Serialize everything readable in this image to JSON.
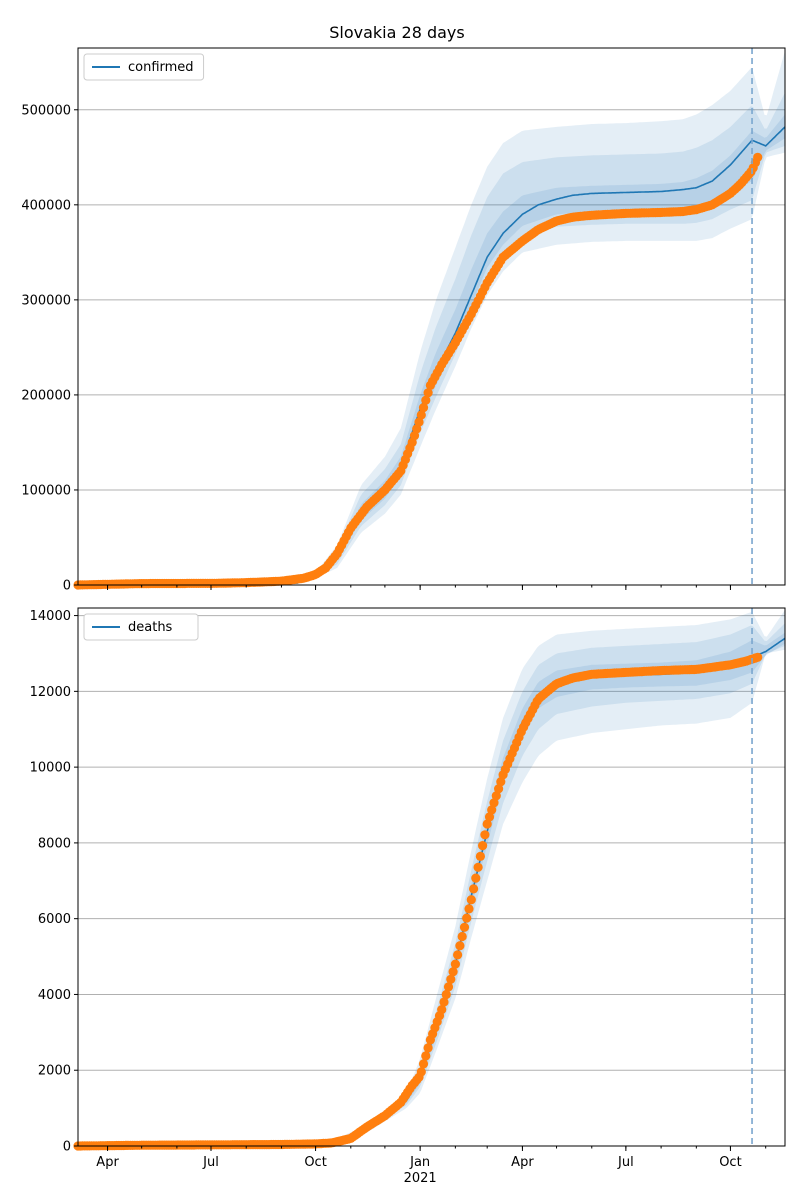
{
  "figure": {
    "title": "Slovakia 28 days"
  },
  "colors": {
    "model": "#1f77b4",
    "observed": "#ff7f0e",
    "band": "#1f77b4",
    "grid": "#b0b0b0",
    "forecast_line": "#7aa6cf"
  },
  "x_ticks": [
    {
      "date": "2020-04-01",
      "label": "Apr"
    },
    {
      "date": "2020-07-01",
      "label": "Jul"
    },
    {
      "date": "2020-10-01",
      "label": "Oct"
    },
    {
      "date": "2021-01-01",
      "label": "Jan",
      "sublabel": "2021"
    },
    {
      "date": "2021-04-01",
      "label": "Apr"
    },
    {
      "date": "2021-07-01",
      "label": "Jul"
    },
    {
      "date": "2021-10-01",
      "label": "Oct"
    }
  ],
  "chart_data": [
    {
      "type": "line",
      "legend": "confirmed",
      "legend_position": "top-left",
      "grid": "horizontal",
      "xlim": [
        "2020-03-06",
        "2021-11-18"
      ],
      "ylim": [
        0,
        565000
      ],
      "y_ticks": [
        0,
        100000,
        200000,
        300000,
        400000,
        500000
      ],
      "forecast_start": "2021-10-20",
      "model": {
        "x": [
          "2020-03-06",
          "2020-09-15",
          "2020-10-01",
          "2020-10-20",
          "2020-11-10",
          "2020-12-01",
          "2020-12-15",
          "2021-01-01",
          "2021-01-15",
          "2021-02-01",
          "2021-02-15",
          "2021-03-01",
          "2021-03-15",
          "2021-04-01",
          "2021-04-15",
          "2021-05-01",
          "2021-05-15",
          "2021-06-01",
          "2021-07-01",
          "2021-08-01",
          "2021-08-20",
          "2021-09-01",
          "2021-09-15",
          "2021-10-01",
          "2021-10-20",
          "2021-11-01",
          "2021-11-18"
        ],
        "y": [
          0,
          2000,
          10000,
          30000,
          75000,
          100000,
          125000,
          185000,
          225000,
          265000,
          305000,
          345000,
          370000,
          390000,
          400000,
          406000,
          410000,
          412000,
          413000,
          414000,
          416000,
          418000,
          425000,
          442000,
          468000,
          462000,
          482000
        ]
      },
      "bands": [
        {
          "x": [
            "2020-03-06",
            "2020-09-15",
            "2020-10-01",
            "2020-10-20",
            "2020-11-10",
            "2020-12-01",
            "2020-12-15",
            "2021-01-01",
            "2021-01-15",
            "2021-02-01",
            "2021-02-15",
            "2021-03-01",
            "2021-03-15",
            "2021-04-01",
            "2021-05-01",
            "2021-06-01",
            "2021-07-01",
            "2021-08-01",
            "2021-08-20",
            "2021-09-01",
            "2021-09-15",
            "2021-10-01",
            "2021-10-20",
            "2021-11-01",
            "2021-11-18"
          ],
          "upper": [
            0,
            2500,
            13000,
            42000,
            105000,
            135000,
            165000,
            245000,
            300000,
            355000,
            400000,
            440000,
            465000,
            478000,
            482000,
            485000,
            486000,
            488000,
            490000,
            495000,
            505000,
            520000,
            545000,
            490000,
            562000
          ],
          "lower": [
            0,
            1500,
            7000,
            18000,
            55000,
            75000,
            95000,
            145000,
            185000,
            230000,
            270000,
            305000,
            330000,
            350000,
            358000,
            361000,
            362000,
            362000,
            362000,
            362000,
            365000,
            375000,
            385000,
            450000,
            455000
          ]
        },
        {
          "x": [
            "2020-03-06",
            "2020-09-15",
            "2020-10-01",
            "2020-10-20",
            "2020-11-10",
            "2020-12-01",
            "2020-12-15",
            "2021-01-01",
            "2021-01-15",
            "2021-02-01",
            "2021-02-15",
            "2021-03-01",
            "2021-03-15",
            "2021-04-01",
            "2021-05-01",
            "2021-06-01",
            "2021-07-01",
            "2021-08-01",
            "2021-08-20",
            "2021-09-01",
            "2021-09-15",
            "2021-10-01",
            "2021-10-20",
            "2021-11-01",
            "2021-11-18"
          ],
          "upper": [
            0,
            2300,
            12000,
            38000,
            95000,
            122000,
            148000,
            222000,
            272000,
            322000,
            368000,
            408000,
            433000,
            445000,
            450000,
            452000,
            453000,
            454000,
            456000,
            460000,
            468000,
            482000,
            505000,
            478000,
            518000
          ],
          "lower": [
            0,
            1700,
            8000,
            22000,
            62000,
            84000,
            105000,
            160000,
            198000,
            243000,
            285000,
            322000,
            348000,
            368000,
            377000,
            379000,
            380000,
            380000,
            380000,
            381000,
            385000,
            395000,
            405000,
            455000,
            462000
          ]
        },
        {
          "x": [
            "2020-03-06",
            "2020-09-15",
            "2020-10-01",
            "2020-10-20",
            "2020-11-10",
            "2020-12-01",
            "2020-12-15",
            "2021-01-01",
            "2021-01-15",
            "2021-02-01",
            "2021-02-15",
            "2021-03-01",
            "2021-03-15",
            "2021-04-01",
            "2021-05-01",
            "2021-06-01",
            "2021-07-01",
            "2021-08-01",
            "2021-08-20",
            "2021-09-01",
            "2021-09-15",
            "2021-10-01",
            "2021-10-20",
            "2021-11-01",
            "2021-11-18"
          ],
          "upper": [
            0,
            2100,
            11000,
            34000,
            85000,
            110000,
            135000,
            200000,
            245000,
            290000,
            332000,
            370000,
            393000,
            410000,
            418000,
            420000,
            421000,
            422000,
            424000,
            428000,
            436000,
            452000,
            478000,
            470000,
            495000
          ],
          "lower": [
            0,
            1900,
            9000,
            26000,
            68000,
            91000,
            115000,
            172000,
            210000,
            252000,
            294000,
            334000,
            358000,
            378000,
            390000,
            393000,
            395000,
            395000,
            395000,
            396000,
            400000,
            412000,
            425000,
            457000,
            470000
          ]
        }
      ],
      "observed": {
        "x": [
          "2020-03-06",
          "2020-05-01",
          "2020-07-01",
          "2020-08-01",
          "2020-09-01",
          "2020-09-20",
          "2020-10-01",
          "2020-10-10",
          "2020-10-20",
          "2020-11-01",
          "2020-11-15",
          "2020-12-01",
          "2020-12-15",
          "2020-12-25",
          "2021-01-01",
          "2021-01-10",
          "2021-01-20",
          "2021-02-01",
          "2021-02-15",
          "2021-03-01",
          "2021-03-15",
          "2021-04-01",
          "2021-04-15",
          "2021-05-01",
          "2021-05-15",
          "2021-06-01",
          "2021-07-01",
          "2021-08-01",
          "2021-08-20",
          "2021-09-01",
          "2021-09-15",
          "2021-10-01",
          "2021-10-10",
          "2021-10-20",
          "2021-10-25"
        ],
        "y": [
          0,
          1500,
          1700,
          2500,
          4000,
          7000,
          11000,
          18000,
          33000,
          60000,
          82000,
          100000,
          120000,
          150000,
          175000,
          210000,
          232000,
          255000,
          285000,
          318000,
          345000,
          362000,
          374000,
          383000,
          387000,
          389000,
          391000,
          392000,
          393000,
          395000,
          400000,
          412000,
          422000,
          436000,
          450000
        ]
      }
    },
    {
      "type": "line",
      "legend": "deaths",
      "legend_position": "top-left",
      "grid": "horizontal",
      "xlim": [
        "2020-03-06",
        "2021-11-18"
      ],
      "ylim": [
        0,
        14200
      ],
      "y_ticks": [
        0,
        2000,
        4000,
        6000,
        8000,
        10000,
        12000,
        14000
      ],
      "forecast_start": "2021-10-20",
      "model": {
        "x": [
          "2020-03-06",
          "2020-10-01",
          "2020-10-20",
          "2020-11-15",
          "2020-12-01",
          "2020-12-20",
          "2021-01-01",
          "2021-01-15",
          "2021-02-01",
          "2021-02-15",
          "2021-03-01",
          "2021-03-15",
          "2021-04-01",
          "2021-04-15",
          "2021-05-01",
          "2021-05-15",
          "2021-06-01",
          "2021-07-01",
          "2021-08-01",
          "2021-09-01",
          "2021-10-01",
          "2021-10-20",
          "2021-11-01",
          "2021-11-18"
        ],
        "y": [
          0,
          50,
          150,
          450,
          800,
          1200,
          1800,
          3100,
          4800,
          6600,
          8300,
          9900,
          11200,
          11900,
          12200,
          12350,
          12400,
          12430,
          12450,
          12500,
          12700,
          12900,
          13050,
          13400
        ]
      },
      "bands": [
        {
          "x": [
            "2020-03-06",
            "2020-10-01",
            "2020-10-20",
            "2020-11-15",
            "2020-12-01",
            "2020-12-20",
            "2021-01-01",
            "2021-01-15",
            "2021-02-01",
            "2021-02-15",
            "2021-03-01",
            "2021-03-15",
            "2021-04-01",
            "2021-04-15",
            "2021-05-01",
            "2021-06-01",
            "2021-07-01",
            "2021-08-01",
            "2021-09-01",
            "2021-10-01",
            "2021-10-20",
            "2021-11-01",
            "2021-11-18"
          ],
          "upper": [
            0,
            60,
            200,
            550,
            950,
            1400,
            2300,
            3900,
            5800,
            7800,
            9700,
            11300,
            12600,
            13200,
            13500,
            13600,
            13650,
            13700,
            13750,
            13900,
            14100,
            13400,
            14150
          ],
          "lower": [
            0,
            40,
            100,
            350,
            650,
            1000,
            1400,
            2500,
            3900,
            5500,
            7000,
            8500,
            9600,
            10300,
            10700,
            10900,
            11000,
            11100,
            11150,
            11300,
            11700,
            13000,
            13100
          ]
        },
        {
          "x": [
            "2020-03-06",
            "2020-10-01",
            "2020-10-20",
            "2020-11-15",
            "2020-12-01",
            "2020-12-20",
            "2021-01-01",
            "2021-01-15",
            "2021-02-01",
            "2021-02-15",
            "2021-03-01",
            "2021-03-15",
            "2021-04-01",
            "2021-04-15",
            "2021-05-01",
            "2021-06-01",
            "2021-07-01",
            "2021-08-01",
            "2021-09-01",
            "2021-10-01",
            "2021-10-20",
            "2021-11-01",
            "2021-11-18"
          ],
          "upper": [
            0,
            55,
            180,
            510,
            890,
            1320,
            2080,
            3550,
            5350,
            7280,
            9100,
            10700,
            12000,
            12700,
            13000,
            13150,
            13200,
            13250,
            13300,
            13500,
            13750,
            13300,
            13800
          ],
          "lower": [
            0,
            45,
            120,
            390,
            710,
            1080,
            1560,
            2700,
            4220,
            5920,
            7520,
            9050,
            10300,
            11000,
            11400,
            11600,
            11700,
            11750,
            11800,
            11950,
            12200,
            12980,
            13200
          ]
        },
        {
          "x": [
            "2020-03-06",
            "2020-10-01",
            "2020-10-20",
            "2020-11-15",
            "2020-12-01",
            "2020-12-20",
            "2021-01-01",
            "2021-01-15",
            "2021-02-01",
            "2021-02-15",
            "2021-03-01",
            "2021-03-15",
            "2021-04-01",
            "2021-04-15",
            "2021-05-01",
            "2021-06-01",
            "2021-07-01",
            "2021-08-01",
            "2021-09-01",
            "2021-10-01",
            "2021-10-20",
            "2021-11-01",
            "2021-11-18"
          ],
          "upper": [
            0,
            52,
            165,
            480,
            850,
            1260,
            1950,
            3320,
            5050,
            6900,
            8650,
            10250,
            11550,
            12250,
            12550,
            12700,
            12730,
            12760,
            12820,
            13050,
            13350,
            13200,
            13550
          ],
          "lower": [
            0,
            48,
            135,
            420,
            750,
            1140,
            1650,
            2880,
            4550,
            6300,
            7950,
            9550,
            10850,
            11550,
            11850,
            12050,
            12100,
            12130,
            12150,
            12300,
            12500,
            12950,
            13260
          ]
        }
      ],
      "observed": {
        "x": [
          "2020-03-06",
          "2020-05-01",
          "2020-07-01",
          "2020-09-01",
          "2020-10-01",
          "2020-10-15",
          "2020-11-01",
          "2020-11-15",
          "2020-12-01",
          "2020-12-15",
          "2020-12-25",
          "2021-01-01",
          "2021-01-10",
          "2021-01-20",
          "2021-02-01",
          "2021-02-15",
          "2021-03-01",
          "2021-03-15",
          "2021-04-01",
          "2021-04-15",
          "2021-05-01",
          "2021-05-15",
          "2021-06-01",
          "2021-07-01",
          "2021-08-01",
          "2021-09-01",
          "2021-10-01",
          "2021-10-15",
          "2021-10-25"
        ],
        "y": [
          0,
          20,
          30,
          40,
          55,
          80,
          200,
          500,
          800,
          1150,
          1600,
          1850,
          2800,
          3600,
          4800,
          6500,
          8500,
          9800,
          11000,
          11800,
          12200,
          12350,
          12450,
          12500,
          12550,
          12580,
          12700,
          12800,
          12900
        ]
      }
    }
  ]
}
